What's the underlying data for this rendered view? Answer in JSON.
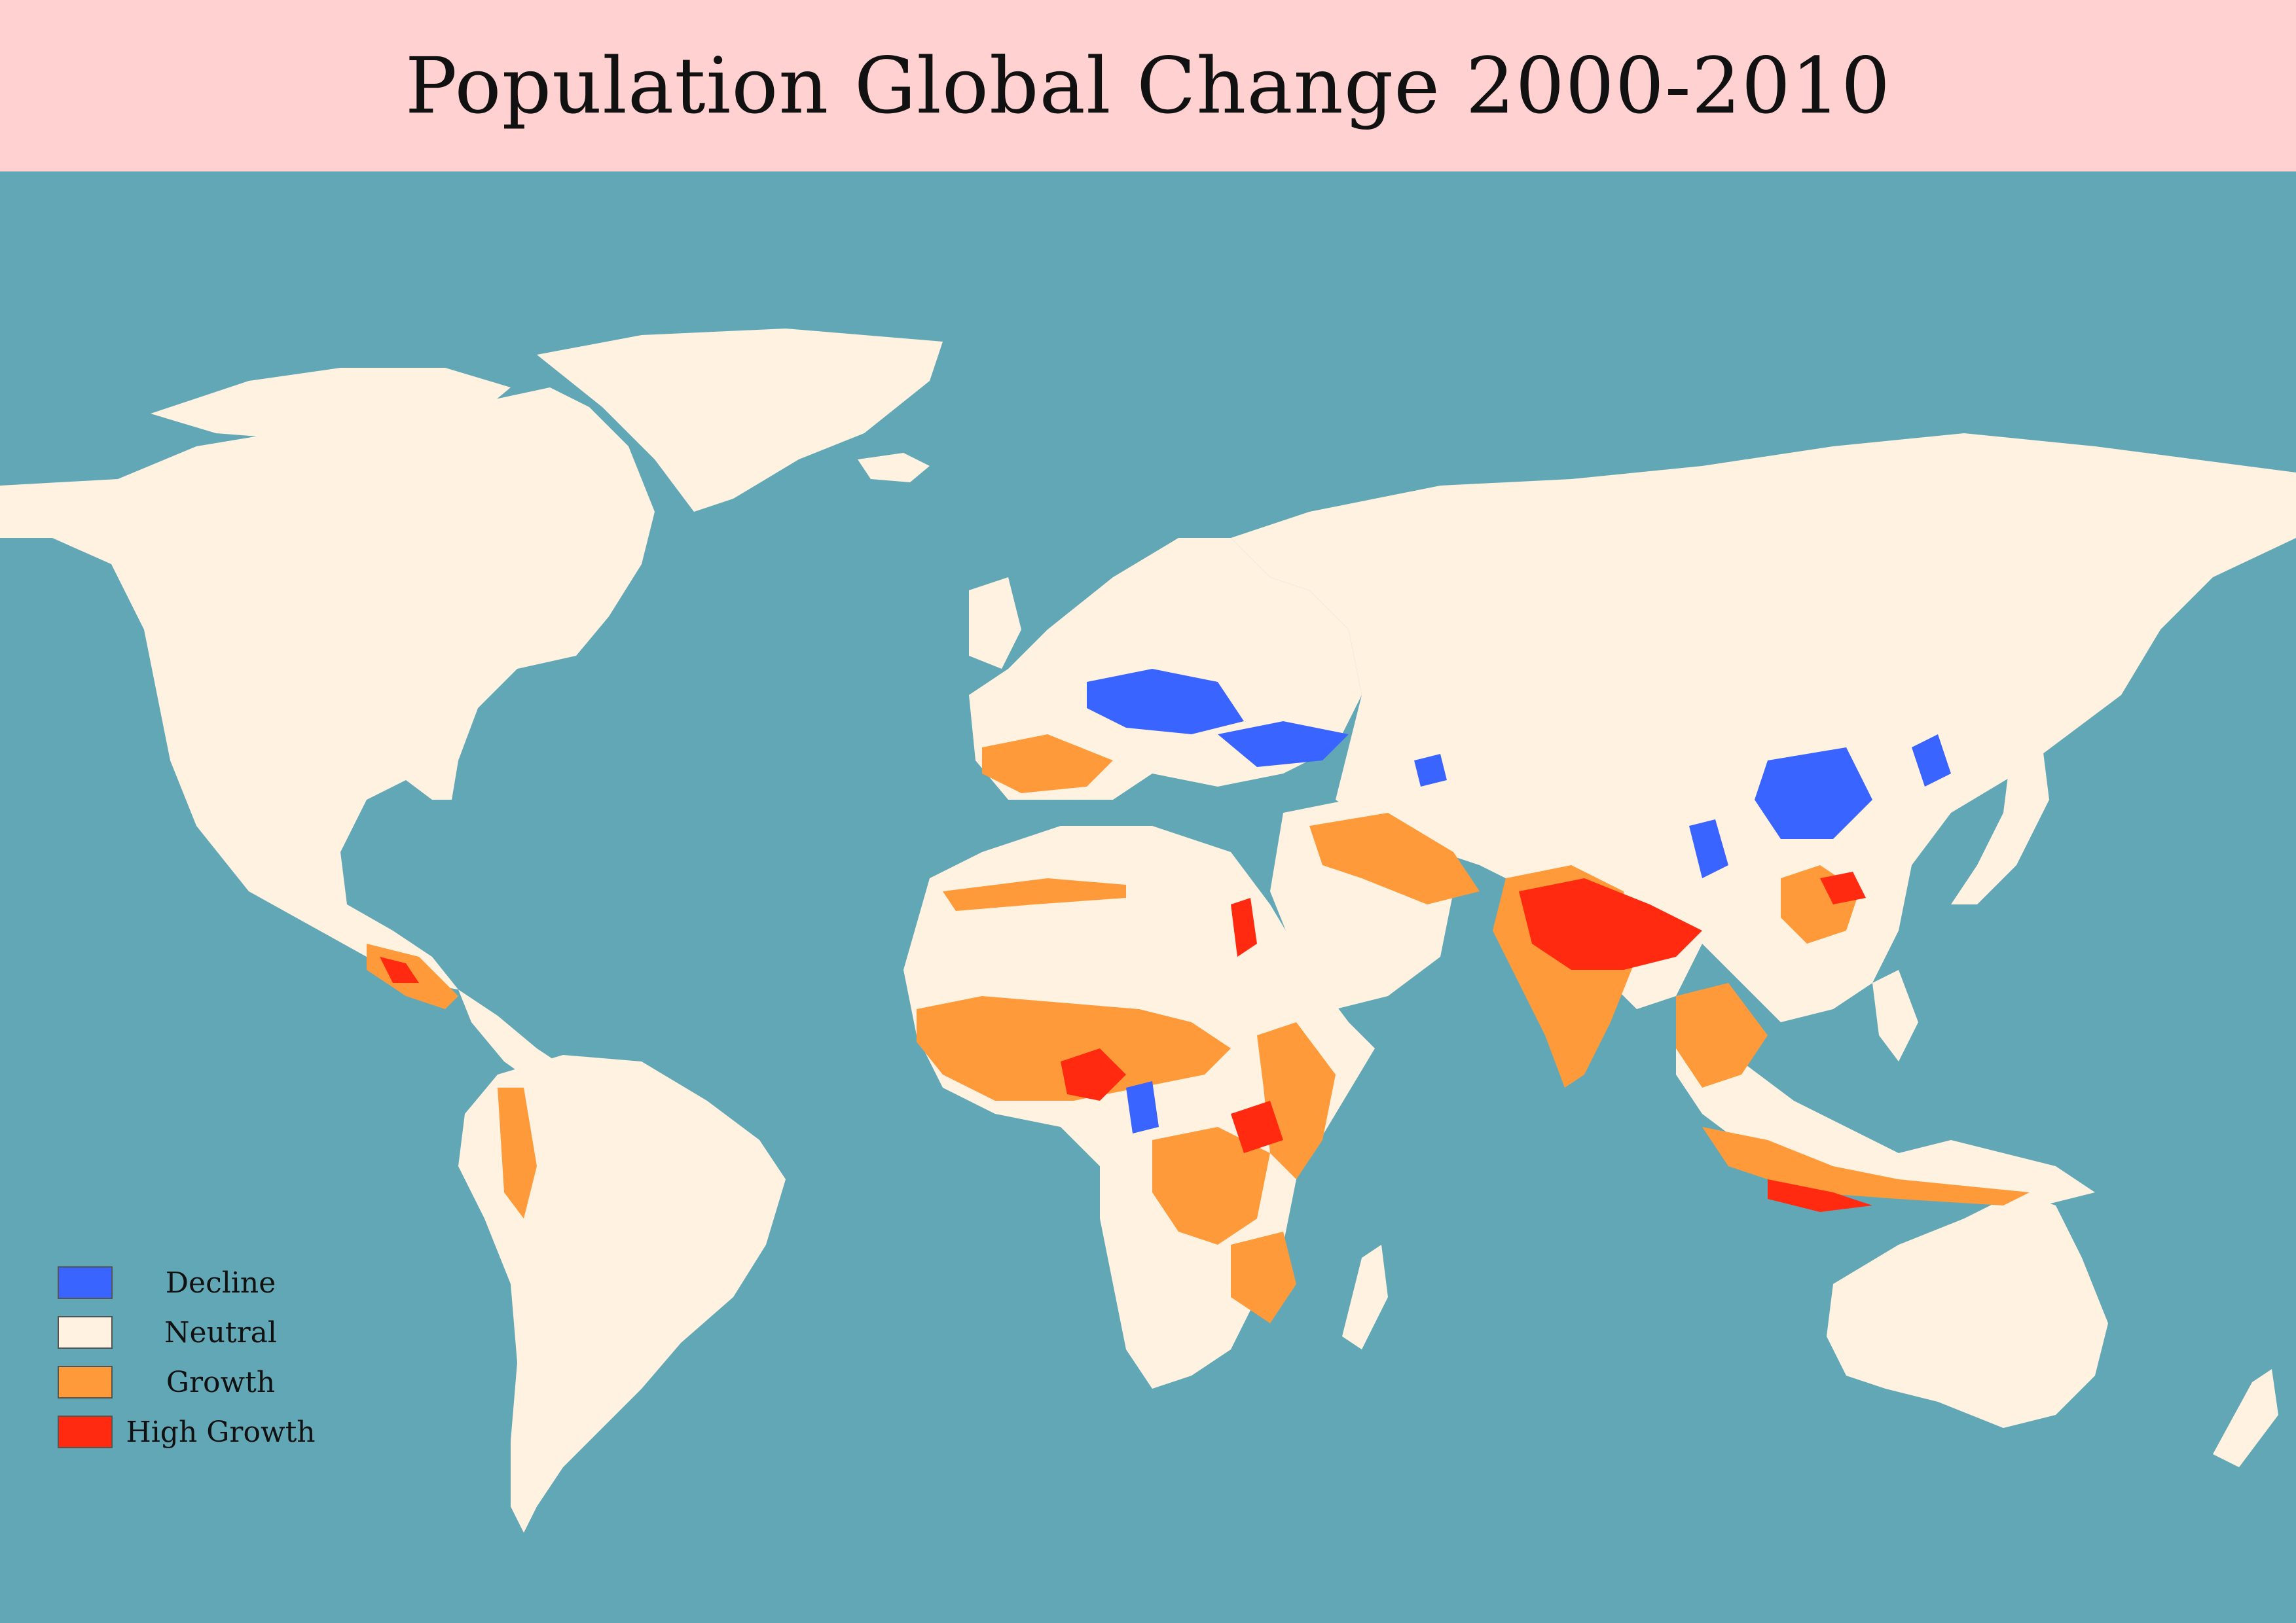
{
  "title": "Population Global Change 2000-2010",
  "colors": {
    "ocean": "#62a7b5",
    "header": "#ffd1d1",
    "decline": "#3a64ff",
    "neutral": "#fff2e1",
    "growth": "#ff9a3a",
    "high_growth": "#ff2a10"
  },
  "legend": [
    {
      "label": "Decline",
      "color": "#3a64ff"
    },
    {
      "label": "Neutral",
      "color": "#fff2e1"
    },
    {
      "label": "Growth",
      "color": "#ff9a3a"
    },
    {
      "label": "High Growth",
      "color": "#ff2a10"
    }
  ]
}
